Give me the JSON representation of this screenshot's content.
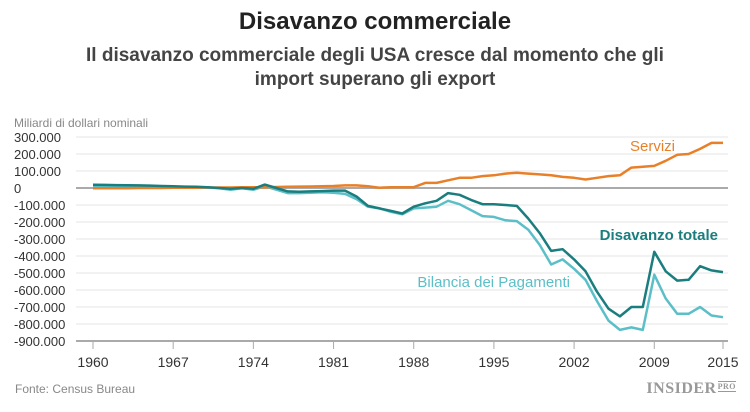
{
  "title": "Disavanzo commerciale",
  "subtitle": "Il disavanzo commerciale degli USA cresce dal momento che gli import superano gli export",
  "source": "Fonte: Census Bureau",
  "logo": {
    "text": "INSIDER",
    "suffix": "PRO"
  },
  "chart_data": {
    "type": "line",
    "ylabel": "Miliardi di dollari nominali",
    "xlim": [
      1960,
      2015
    ],
    "ylim": [
      -900000,
      300000
    ],
    "yticks": [
      300000,
      200000,
      100000,
      0,
      -100000,
      -200000,
      -300000,
      -400000,
      -500000,
      -600000,
      -700000,
      -800000,
      -900000
    ],
    "ytick_labels": [
      "300.000",
      "200.000",
      "100.000",
      "0",
      "-100.000",
      "-200.000",
      "-300.000",
      "-400.000",
      "-500.000",
      "-600.000",
      "-700.000",
      "-800.000",
      "-900.000"
    ],
    "xticks": [
      1960,
      1967,
      1974,
      1981,
      1988,
      1995,
      2002,
      2009,
      2015
    ],
    "xtick_labels": [
      "1960",
      "1967",
      "1974",
      "1981",
      "1988",
      "1995",
      "2002",
      "2009",
      "2015"
    ],
    "grid": true,
    "x_start": 1960,
    "series": [
      {
        "name": "Servizi",
        "color": "#e8802a",
        "values": [
          -2000,
          -2000,
          -1000,
          -1000,
          0,
          0,
          0,
          1000,
          1000,
          2000,
          3000,
          3000,
          3000,
          4000,
          4000,
          5000,
          6000,
          7000,
          8000,
          9000,
          10000,
          12000,
          15000,
          15000,
          10000,
          2000,
          5000,
          5000,
          5000,
          30000,
          30000,
          45000,
          60000,
          60000,
          70000,
          75000,
          85000,
          90000,
          85000,
          80000,
          75000,
          65000,
          60000,
          50000,
          60000,
          70000,
          75000,
          120000,
          125000,
          130000,
          160000,
          195000,
          200000,
          230000,
          265000,
          265000
        ]
      },
      {
        "name": "Disavanzo totale",
        "color": "#1a7d7e",
        "values": [
          19000,
          18000,
          17000,
          16000,
          15000,
          14000,
          12000,
          10000,
          8000,
          7000,
          5000,
          0,
          -5000,
          0,
          -5000,
          20000,
          0,
          -20000,
          -22000,
          -20000,
          -18000,
          -15000,
          -15000,
          -50000,
          -105000,
          -120000,
          -135000,
          -150000,
          -110000,
          -90000,
          -75000,
          -30000,
          -40000,
          -70000,
          -95000,
          -95000,
          -100000,
          -105000,
          -180000,
          -265000,
          -370000,
          -360000,
          -420000,
          -490000,
          -610000,
          -710000,
          -755000,
          -700000,
          -700000,
          -375000,
          -490000,
          -545000,
          -540000,
          -460000,
          -485000,
          -495000
        ]
      },
      {
        "name": "Bilancia dei Pagamenti",
        "color": "#5bbfc8",
        "values": [
          5000,
          5000,
          5000,
          5000,
          5000,
          5000,
          4000,
          4000,
          3000,
          3000,
          3000,
          -2000,
          -10000,
          -1000,
          -10000,
          10000,
          -10000,
          -30000,
          -30000,
          -28000,
          -25000,
          -28000,
          -35000,
          -65000,
          -110000,
          -120000,
          -140000,
          -155000,
          -120000,
          -115000,
          -110000,
          -75000,
          -95000,
          -130000,
          -165000,
          -170000,
          -190000,
          -195000,
          -245000,
          -335000,
          -450000,
          -420000,
          -475000,
          -540000,
          -665000,
          -780000,
          -835000,
          -820000,
          -835000,
          -510000,
          -650000,
          -740000,
          -740000,
          -700000,
          -750000,
          -760000
        ]
      }
    ]
  }
}
